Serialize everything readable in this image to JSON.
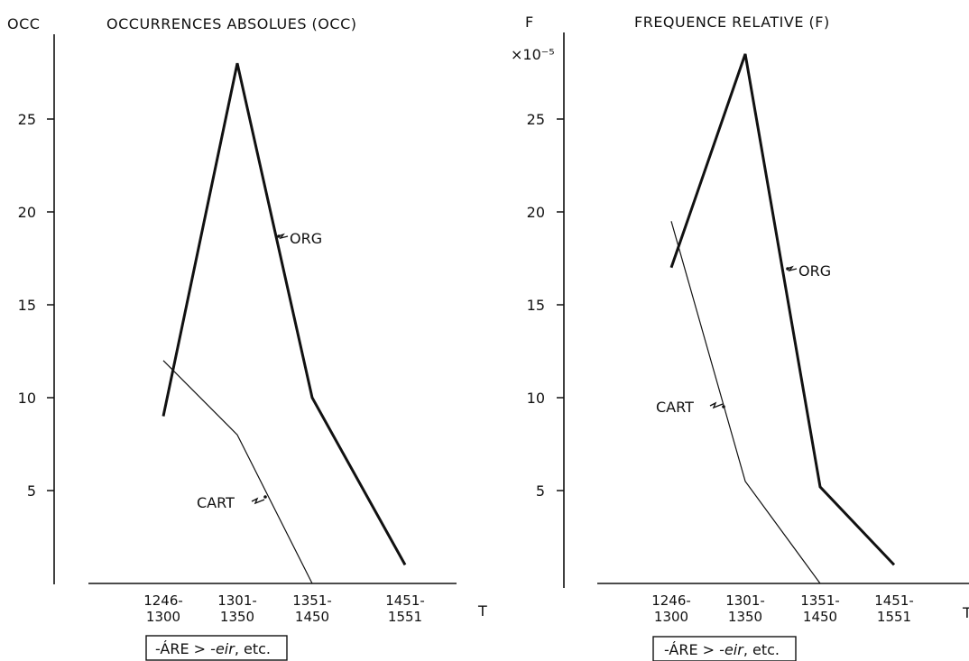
{
  "chart_data": [
    {
      "type": "line",
      "title": "OCCURRENCES ABSOLUES (OCC)",
      "ylabel": "OCC",
      "xlabel": "T",
      "ylim": [
        0,
        29
      ],
      "yticks": [
        5,
        10,
        15,
        20,
        25
      ],
      "categories": [
        "1246-|1300",
        "1301-|1350",
        "1351-|1450",
        "1451-|1551"
      ],
      "series": [
        {
          "name": "ORG",
          "style": "thick",
          "values": [
            9,
            28,
            10,
            1
          ]
        },
        {
          "name": "CART",
          "style": "thin",
          "values": [
            12,
            8,
            0,
            null
          ]
        }
      ],
      "footer": {
        "prefix": "-ÁRE > ",
        "italic": "-eir",
        "suffix": ", etc."
      }
    },
    {
      "type": "line",
      "title": "FREQUENCE RELATIVE (F)",
      "ylabel": "F",
      "yscale_label": "×10⁻⁵",
      "xlabel": "T",
      "ylim": [
        0,
        29
      ],
      "yticks": [
        5,
        10,
        15,
        20,
        25
      ],
      "categories": [
        "1246-|1300",
        "1301-|1350",
        "1351-|1450",
        "1451-|1551"
      ],
      "series": [
        {
          "name": "ORG",
          "style": "thick",
          "values": [
            17,
            28.5,
            5.2,
            1
          ]
        },
        {
          "name": "CART",
          "style": "thin",
          "values": [
            19.5,
            5.5,
            0,
            null
          ]
        }
      ],
      "footer": {
        "prefix": "-ÁRE > ",
        "italic": "-eir",
        "suffix": ", etc."
      }
    }
  ]
}
